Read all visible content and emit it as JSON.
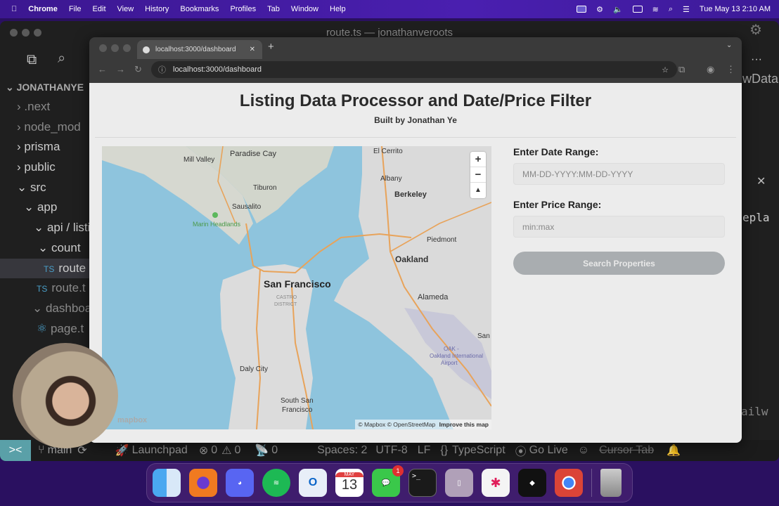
{
  "menubar": {
    "app": "Chrome",
    "items": [
      "File",
      "Edit",
      "View",
      "History",
      "Bookmarks",
      "Profiles",
      "Tab",
      "Window",
      "Help"
    ],
    "clock": "Tue May 13  2:10 AM"
  },
  "vscode": {
    "title": "route.ts — jonathanveroots",
    "explorer_root": "JONATHANYE",
    "tree": [
      {
        "label": ".next"
      },
      {
        "label": "node_mod"
      },
      {
        "label": "prisma"
      },
      {
        "label": "public"
      },
      {
        "label": "src"
      },
      {
        "label": "app"
      },
      {
        "label": "api / listi"
      },
      {
        "label": "count"
      },
      {
        "label": "route",
        "type": "TS"
      },
      {
        "label": "route.t",
        "type": "TS"
      },
      {
        "label": "dashboa"
      },
      {
        "label": "page.t"
      }
    ],
    "editor_fragments": [
      "wData",
      "epla",
      "ailw"
    ],
    "status": {
      "branch": "main",
      "launchpad": "Launchpad",
      "errors": "0",
      "warnings": "0",
      "ports": "0",
      "spaces": "Spaces: 2",
      "encoding": "UTF-8",
      "eol": "LF",
      "language": "TypeScript",
      "golive": "Go Live",
      "cursortab": "Cursor Tab"
    }
  },
  "browser": {
    "tab_title": "localhost:3000/dashboard",
    "url": "localhost:3000/dashboard"
  },
  "page": {
    "title": "Listing Data Processor and Date/Price Filter",
    "subtitle": "Built by Jonathan Ye",
    "date_label": "Enter Date Range:",
    "date_placeholder": "MM-DD-YYYY:MM-DD-YYYY",
    "price_label": "Enter Price Range:",
    "price_placeholder": "min:max",
    "search_button": "Search Properties",
    "button_color": "#a9adb0"
  },
  "map": {
    "labels": [
      "Paradise Cay",
      "Mill Valley",
      "El Cerrito",
      "Albany",
      "Berkeley",
      "Tiburon",
      "Sausalito",
      "Marin Headlands",
      "Piedmont",
      "Oakland",
      "San Francisco",
      "CASTRO",
      "DISTRICT",
      "Alameda",
      "San",
      "OAK -",
      "Oakland International",
      "Airport",
      "Daly City",
      "South San",
      "Francisco"
    ],
    "shields": [
      "1",
      "101",
      "80",
      "80",
      "880",
      "101",
      "280"
    ],
    "attribution": "© Mapbox © OpenStreetMap",
    "improve": "Improve this map",
    "logo": "mapbox"
  },
  "dock": {
    "apps": [
      "Finder",
      "Firefox",
      "Discord",
      "Spotify",
      "Outlook",
      "Calendar",
      "Messages",
      "Terminal",
      "iPhone Mirroring",
      "Slack",
      "Cursor",
      "Chrome",
      "Trash"
    ],
    "calendar_month": "MAY",
    "calendar_day": "13",
    "messages_badge": "1"
  }
}
